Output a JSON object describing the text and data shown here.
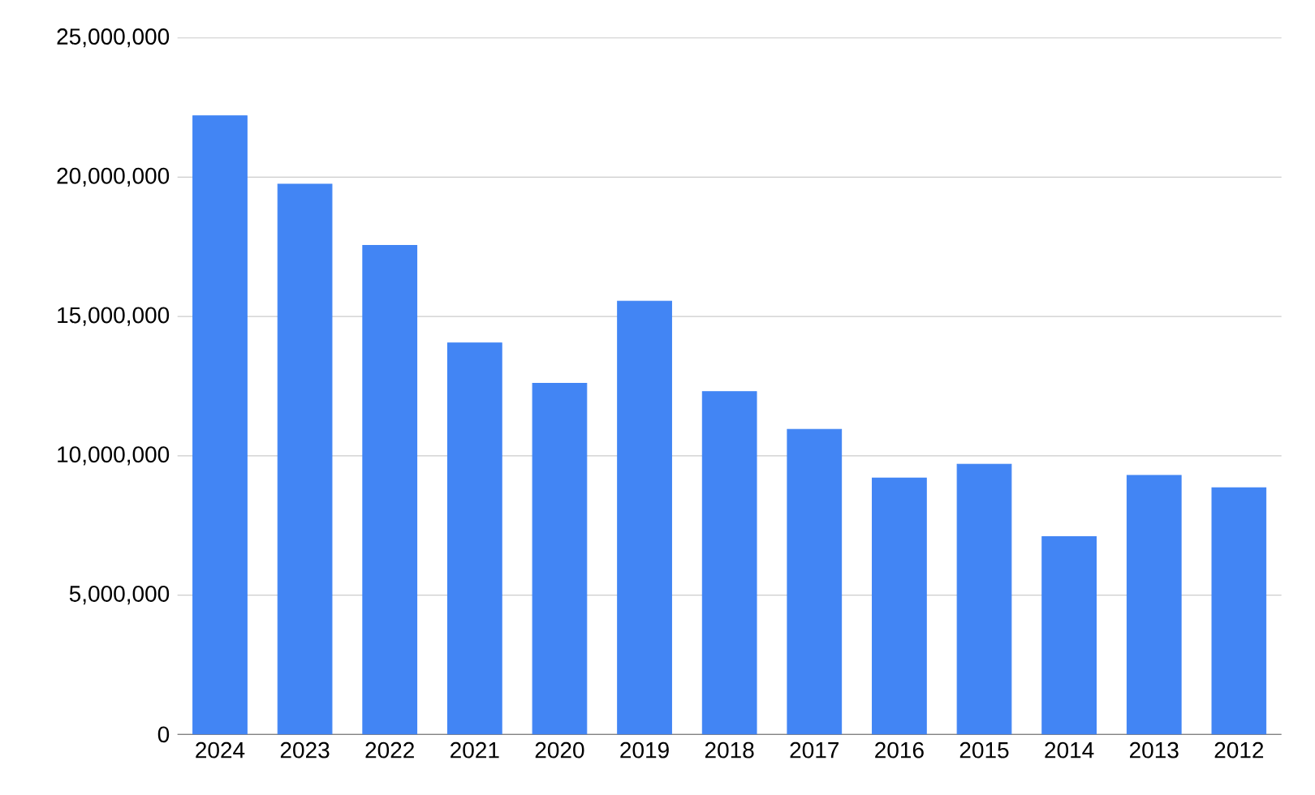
{
  "chart_data": {
    "type": "bar",
    "categories": [
      "2024",
      "2023",
      "2022",
      "2021",
      "2020",
      "2019",
      "2018",
      "2017",
      "2016",
      "2015",
      "2014",
      "2013",
      "2012"
    ],
    "values": [
      22200000,
      19750000,
      17550000,
      14050000,
      12600000,
      15550000,
      12300000,
      10950000,
      9200000,
      9700000,
      7100000,
      9300000,
      8850000
    ],
    "color": "#4285f4",
    "ylim": [
      0,
      25000000
    ],
    "yticks": [
      {
        "value": 0,
        "label": "0"
      },
      {
        "value": 5000000,
        "label": "5,000,000"
      },
      {
        "value": 10000000,
        "label": "10,000,000"
      },
      {
        "value": 15000000,
        "label": "15,000,000"
      },
      {
        "value": 20000000,
        "label": "20,000,000"
      },
      {
        "value": 25000000,
        "label": "25,000,000"
      }
    ],
    "grid": "y"
  }
}
